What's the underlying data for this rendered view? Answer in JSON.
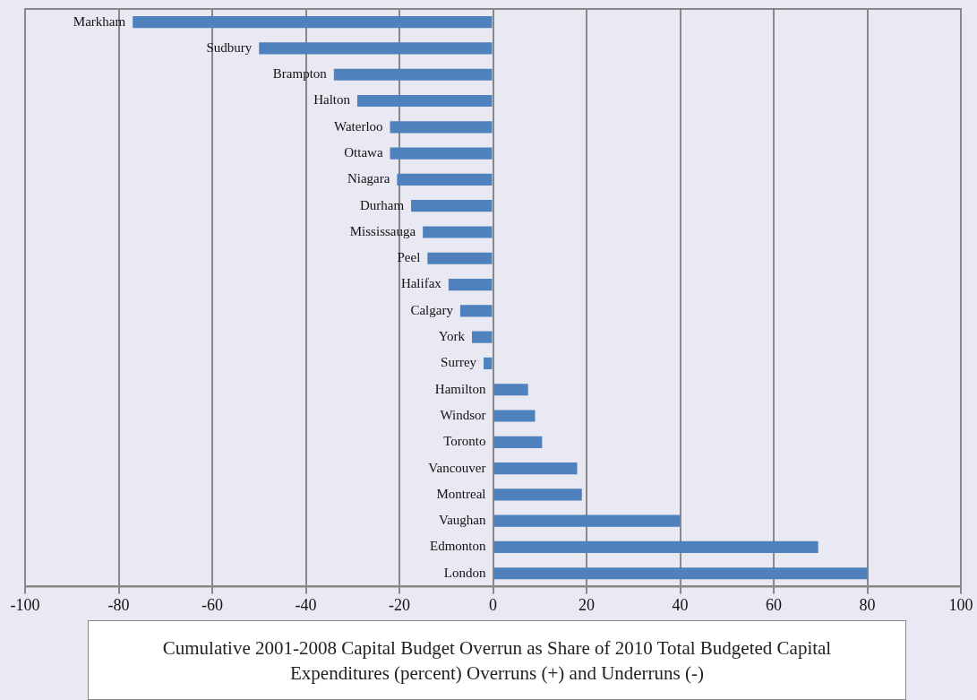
{
  "chart_data": {
    "type": "bar",
    "orientation": "horizontal",
    "title": "Cumulative 2001-2008 Capital Budget Overrun as Share of 2010 Total Budgeted Capital Expenditures (percent) Overruns (+) and Underruns (-)",
    "categories": [
      "Markham",
      "Sudbury",
      "Brampton",
      "Halton",
      "Waterloo",
      "Ottawa",
      "Niagara",
      "Durham",
      "Mississauga",
      "Peel",
      "Halifax",
      "Calgary",
      "York",
      "Surrey",
      "Hamilton",
      "Windsor",
      "Toronto",
      "Vancouver",
      "Montreal",
      "Vaughan",
      "Edmonton",
      "London"
    ],
    "values": [
      -77,
      -50,
      -34,
      -29,
      -22,
      -22,
      -20.5,
      -17.5,
      -15,
      -14,
      -9.5,
      -7,
      -4.5,
      -2,
      7.5,
      9,
      10.5,
      18,
      19,
      40,
      69.5,
      80
    ],
    "color": "#4f81bd",
    "xlim": [
      -100,
      100
    ],
    "xticks": [
      -100,
      -80,
      -60,
      -40,
      -20,
      0,
      20,
      40,
      60,
      80,
      100
    ],
    "grid": "x",
    "legend": false
  }
}
